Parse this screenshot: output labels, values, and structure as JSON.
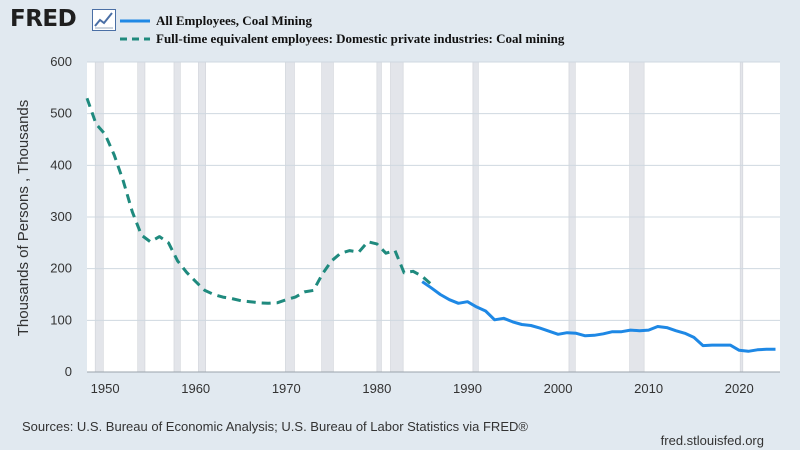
{
  "header": {
    "logo_text": "FRED",
    "logo_icon": "line-chart-icon"
  },
  "colors": {
    "page_bg": "#e1e9f0",
    "plot_bg": "#ffffff",
    "gridline": "#cfd8e0",
    "recession": "#e3e5ea",
    "series1": "#1e88e5",
    "series2": "#1f8a7e"
  },
  "footer": {
    "source": "Sources: U.S. Bureau of Economic Analysis; U.S. Bureau of Labor Statistics via FRED®",
    "url": "fred.stlouisfed.org"
  },
  "chart_data": {
    "type": "line",
    "title": "",
    "xlabel": "",
    "ylabel": "Thousands of Persons , Thousands",
    "xlim": [
      1948,
      2024.5
    ],
    "ylim": [
      0,
      600
    ],
    "x_ticks": [
      1950,
      1960,
      1970,
      1980,
      1990,
      2000,
      2010,
      2020
    ],
    "y_ticks": [
      0,
      100,
      200,
      300,
      400,
      500,
      600
    ],
    "grid": true,
    "legend_position": "top",
    "recessions": [
      [
        1948.9,
        1949.8
      ],
      [
        1953.6,
        1954.4
      ],
      [
        1957.6,
        1958.3
      ],
      [
        1960.3,
        1961.1
      ],
      [
        1969.9,
        1970.9
      ],
      [
        1973.9,
        1975.2
      ],
      [
        1980.0,
        1980.5
      ],
      [
        1981.5,
        1982.9
      ],
      [
        1990.6,
        1991.2
      ],
      [
        2001.2,
        2001.9
      ],
      [
        2007.9,
        2009.5
      ],
      [
        2020.1,
        2020.4
      ]
    ],
    "series": [
      {
        "name": "All Employees, Coal Mining",
        "style": "solid",
        "x": [
          1985,
          1986,
          1987,
          1988,
          1989,
          1990,
          1991,
          1992,
          1993,
          1994,
          1995,
          1996,
          1997,
          1998,
          1999,
          2000,
          2001,
          2002,
          2003,
          2004,
          2005,
          2006,
          2007,
          2008,
          2009,
          2010,
          2011,
          2012,
          2013,
          2014,
          2015,
          2016,
          2017,
          2018,
          2019,
          2020,
          2021,
          2022,
          2023,
          2024
        ],
        "y": [
          175,
          163,
          150,
          140,
          133,
          136,
          126,
          118,
          101,
          104,
          97,
          92,
          90,
          85,
          79,
          73,
          76,
          75,
          70,
          71,
          74,
          78,
          78,
          81,
          80,
          81,
          88,
          86,
          80,
          75,
          67,
          51,
          52,
          52,
          52,
          42,
          40,
          43,
          44,
          44
        ]
      },
      {
        "name": "Full-time equivalent employees: Domestic private industries: Coal mining",
        "style": "dashed",
        "x": [
          1948,
          1949,
          1950,
          1951,
          1952,
          1953,
          1954,
          1955,
          1956,
          1957,
          1958,
          1959,
          1960,
          1961,
          1962,
          1963,
          1964,
          1965,
          1966,
          1967,
          1968,
          1969,
          1970,
          1971,
          1972,
          1973,
          1974,
          1975,
          1976,
          1977,
          1978,
          1979,
          1980,
          1981,
          1982,
          1983,
          1984,
          1985,
          1986
        ],
        "y": [
          530,
          480,
          460,
          420,
          370,
          310,
          265,
          252,
          262,
          250,
          215,
          193,
          175,
          158,
          150,
          145,
          142,
          138,
          136,
          134,
          133,
          134,
          140,
          145,
          155,
          158,
          190,
          215,
          230,
          235,
          232,
          252,
          248,
          230,
          235,
          192,
          195,
          185,
          170
        ]
      }
    ]
  }
}
